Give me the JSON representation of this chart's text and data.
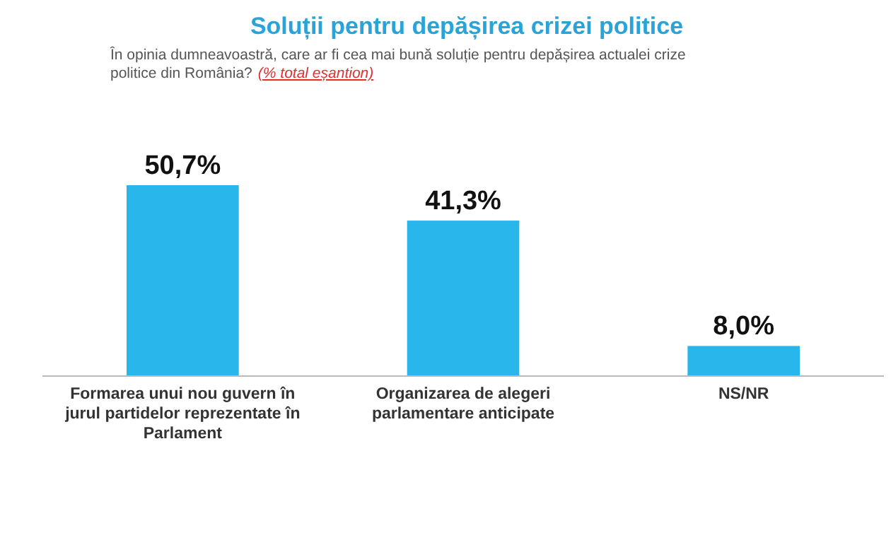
{
  "chart_data": {
    "type": "bar",
    "title": "Soluții pentru depășirea crizei politice",
    "subtitle": "În opinia dumneavoastră, care ar fi cea mai bună soluție pentru depășirea actualei crize politice din România?",
    "annotations": [
      "(% total eșantion)"
    ],
    "categories": [
      "Formarea unui nou guvern în jurul partidelor reprezentate în Parlament",
      "Organizarea de alegeri parlamentare anticipate",
      "NS/NR"
    ],
    "values": [
      50.7,
      41.3,
      8.0
    ],
    "value_labels": [
      "50,7%",
      "41,3%",
      "8,0%"
    ],
    "color": "#29b6ea",
    "relative": false
  }
}
